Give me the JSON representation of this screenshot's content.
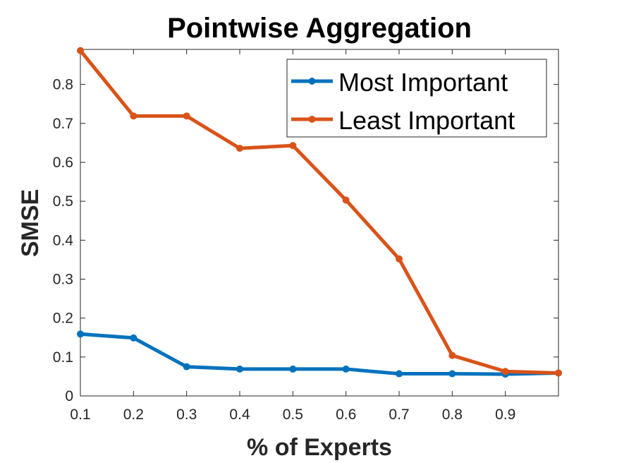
{
  "chart_data": {
    "type": "line",
    "title": "Pointwise Aggregation",
    "xlabel": "% of Experts",
    "ylabel": "SMSE",
    "x": [
      0.1,
      0.2,
      0.3,
      0.4,
      0.5,
      0.6,
      0.7,
      0.8,
      0.9,
      1.0
    ],
    "xlim": [
      0.1,
      1.0
    ],
    "ylim": [
      0,
      0.89
    ],
    "xticks": [
      0.1,
      0.2,
      0.3,
      0.4,
      0.5,
      0.6,
      0.7,
      0.8,
      0.9
    ],
    "xtick_labels": [
      "0.1",
      "0.2",
      "0.3",
      "0.4",
      "0.5",
      "0.6",
      "0.7",
      "0.8",
      "0.9"
    ],
    "yticks": [
      0,
      0.1,
      0.2,
      0.3,
      0.4,
      0.5,
      0.6,
      0.7,
      0.8
    ],
    "ytick_labels": [
      "0",
      "0.1",
      "0.2",
      "0.3",
      "0.4",
      "0.5",
      "0.6",
      "0.7",
      "0.8"
    ],
    "grid": false,
    "legend_position": "top-right",
    "series": [
      {
        "name": "Most Important",
        "color": "#0072BD",
        "values": [
          0.159,
          0.149,
          0.075,
          0.069,
          0.069,
          0.069,
          0.057,
          0.057,
          0.056,
          0.059
        ]
      },
      {
        "name": "Least Important",
        "color": "#D95319",
        "values": [
          0.887,
          0.719,
          0.719,
          0.636,
          0.643,
          0.503,
          0.352,
          0.104,
          0.063,
          0.059
        ]
      }
    ]
  }
}
